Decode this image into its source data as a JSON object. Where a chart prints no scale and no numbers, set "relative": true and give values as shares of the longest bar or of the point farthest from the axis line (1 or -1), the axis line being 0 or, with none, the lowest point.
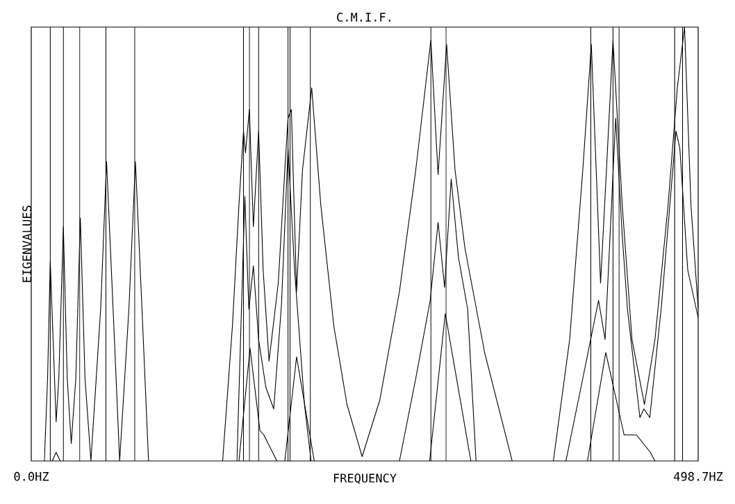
{
  "chart_data": {
    "type": "line",
    "title": "C.M.I.F.",
    "xlabel": "FREQUENCY",
    "ylabel": "EIGENVALUES",
    "relative": true,
    "xlim": [
      0,
      498.7
    ],
    "xticks": [
      {
        "value": 0,
        "label": "0.0HZ"
      },
      {
        "value": 498.7,
        "label": "498.7HZ"
      }
    ],
    "marker": "none",
    "line_style": "solid",
    "series": [
      {
        "color": "#000000",
        "x": [
          9.8,
          12.2,
          14.2,
          18.6,
          20.6,
          24.0,
          26.9,
          29.9,
          33.3,
          36.7,
          40.2,
          44.6,
          51.9,
          56.3,
          61.2,
          66.1,
          73.0,
          77.9,
          82.8,
          87.7,
          115,
          143.1,
          150.4,
          155.3,
          158.7,
          160.2,
          163.1,
          166.1,
          170.0,
          173.4,
          177.8,
          184.7,
          189.6,
          192.0,
          194.5,
          198.4,
          202.8,
          209.7,
          216.5,
          226.3,
          236.1,
          247.4,
          260.6,
          275.3,
          287.5,
          298.8,
          304.2,
          310.6,
          316.9,
          324.3,
          339.0,
          359.6,
          375,
          390.4,
          402.6,
          412.4,
          418.8,
          425.7,
          430.1,
          435.0,
          441.9,
          449.2,
          458.5,
          466.4,
          476.2,
          483.1,
          488.5,
          493.3,
          498.7
        ],
        "values": [
          0,
          0.19,
          0.46,
          0.09,
          0.19,
          0.54,
          0.19,
          0.04,
          0.19,
          0.56,
          0.19,
          0,
          0.35,
          0.69,
          0.35,
          0,
          0.35,
          0.69,
          0.35,
          0,
          null,
          0,
          0.31,
          0.59,
          0.76,
          0.71,
          0.81,
          0.54,
          0.76,
          0.44,
          0.23,
          0.41,
          0.67,
          0.79,
          0.81,
          0.39,
          0.67,
          0.86,
          0.59,
          0.31,
          0.13,
          0.01,
          0.14,
          0.39,
          0.67,
          0.97,
          0.66,
          0.96,
          0.67,
          0.49,
          0.25,
          0,
          null,
          0,
          0.28,
          0.67,
          0.96,
          0.41,
          0.67,
          0.97,
          0.59,
          0.28,
          0.13,
          0.28,
          0.59,
          0.86,
          1.0,
          0.59,
          0.35
        ]
      },
      {
        "color": "#000000",
        "x": [
          153.8,
          159.7,
          162.7,
          166.1,
          170.0,
          175.4,
          181.3,
          187.1,
          192.0,
          196.9,
          204.3,
          209.2,
          240,
          275.3,
          287.5,
          298.3,
          304.2,
          309.1,
          314.0,
          319.4,
          326.3,
          332.6,
          365,
          399.8,
          412.4,
          424.2,
          429.1,
          437.0,
          441.9,
          445.8,
          455.1,
          458.1,
          462.5,
          471.3,
          482.1,
          485.0,
          490.9,
          498.7
        ],
        "values": [
          0,
          0.61,
          0.35,
          0.45,
          0.28,
          0.17,
          0.12,
          0.36,
          0.72,
          0.44,
          0.13,
          0,
          null,
          0,
          0.19,
          0.37,
          0.55,
          0.4,
          0.65,
          0.47,
          0.35,
          0,
          null,
          0,
          0.19,
          0.37,
          0.28,
          0.79,
          0.52,
          0.35,
          0.1,
          0.12,
          0.1,
          0.36,
          0.76,
          0.72,
          0.44,
          0.33
        ]
      },
      {
        "color": "#000000",
        "x": [
          15.7,
          18.6,
          21.6,
          90,
          155.3,
          163.6,
          171.0,
          173.9,
          183.7,
          187,
          189.6,
          198.4,
          211.6,
          250,
          297.9,
          309.6,
          328.7,
          350,
          415.9,
          429.6,
          443.3,
          452.6,
          462.9,
          466.4
        ],
        "values": [
          0,
          0.02,
          0,
          null,
          0,
          0.26,
          0.07,
          0.06,
          0,
          null,
          0,
          0.24,
          0,
          null,
          0,
          0.34,
          0,
          null,
          0,
          0.25,
          0.06,
          0.06,
          0.02,
          0
        ]
      }
    ],
    "ref_lines": [
      {
        "axis": "x",
        "value": 14.2
      },
      {
        "axis": "x",
        "value": 24.0
      },
      {
        "axis": "x",
        "value": 36.3
      },
      {
        "axis": "x",
        "value": 55.8
      },
      {
        "axis": "x",
        "value": 77.4
      },
      {
        "axis": "x",
        "value": 158.7
      },
      {
        "axis": "x",
        "value": 163.1
      },
      {
        "axis": "x",
        "value": 170.0
      },
      {
        "axis": "x",
        "value": 192.0
      },
      {
        "axis": "x",
        "value": 193.5
      },
      {
        "axis": "x",
        "value": 208.7
      },
      {
        "axis": "x",
        "value": 298.8
      },
      {
        "axis": "x",
        "value": 310.1
      },
      {
        "axis": "x",
        "value": 418.4
      },
      {
        "axis": "x",
        "value": 435.0
      },
      {
        "axis": "x",
        "value": 439.5
      },
      {
        "axis": "x",
        "value": 481.1
      },
      {
        "axis": "x",
        "value": 487.0
      }
    ]
  }
}
